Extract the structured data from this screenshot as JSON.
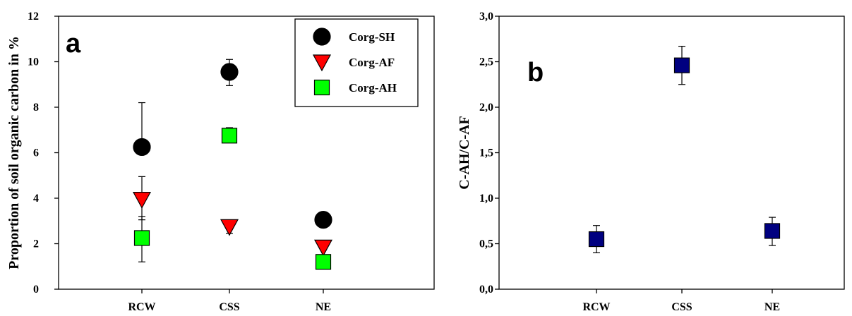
{
  "chart_data": [
    {
      "type": "scatter",
      "panel_label": "a",
      "categories": [
        "RCW",
        "CSS",
        "NE"
      ],
      "ylabel": "Proportion of soil organic carbon in %",
      "xlabel": "",
      "ylim": [
        0,
        12
      ],
      "yticks": [
        "0",
        "2",
        "4",
        "6",
        "8",
        "10",
        "12"
      ],
      "legend_position": "top-right",
      "series": [
        {
          "name": "Corg-SH",
          "marker": "circle",
          "color": "#000000",
          "values": [
            6.25,
            9.55,
            3.05
          ],
          "err_up": [
            1.95,
            0.55,
            0
          ],
          "err_down": [
            0,
            0.6,
            0
          ]
        },
        {
          "name": "Corg-AF",
          "marker": "triangle-down",
          "color": "#ff0000",
          "values": [
            3.95,
            2.75,
            1.85
          ],
          "err_up": [
            1.0,
            0.3,
            0
          ],
          "err_down": [
            0.9,
            0.3,
            0
          ]
        },
        {
          "name": "Corg-AH",
          "marker": "square",
          "color": "#00ff00",
          "values": [
            2.25,
            6.75,
            1.2
          ],
          "err_up": [
            0.95,
            0.35,
            0
          ],
          "err_down": [
            1.05,
            0,
            0
          ]
        }
      ]
    },
    {
      "type": "scatter",
      "panel_label": "b",
      "categories": [
        "RCW",
        "CSS",
        "NE"
      ],
      "ylabel": "C-AH/C-AF",
      "xlabel": "",
      "ylim": [
        0,
        3
      ],
      "yticks": [
        "0,0",
        "0,5",
        "1,0",
        "1,5",
        "2,0",
        "2,5",
        "3,0"
      ],
      "series": [
        {
          "marker": "square",
          "color": "#000080",
          "values": [
            0.55,
            2.46,
            0.64
          ],
          "err_up": [
            0.15,
            0.21,
            0.15
          ],
          "err_down": [
            0.15,
            0.21,
            0.16
          ]
        }
      ]
    }
  ]
}
